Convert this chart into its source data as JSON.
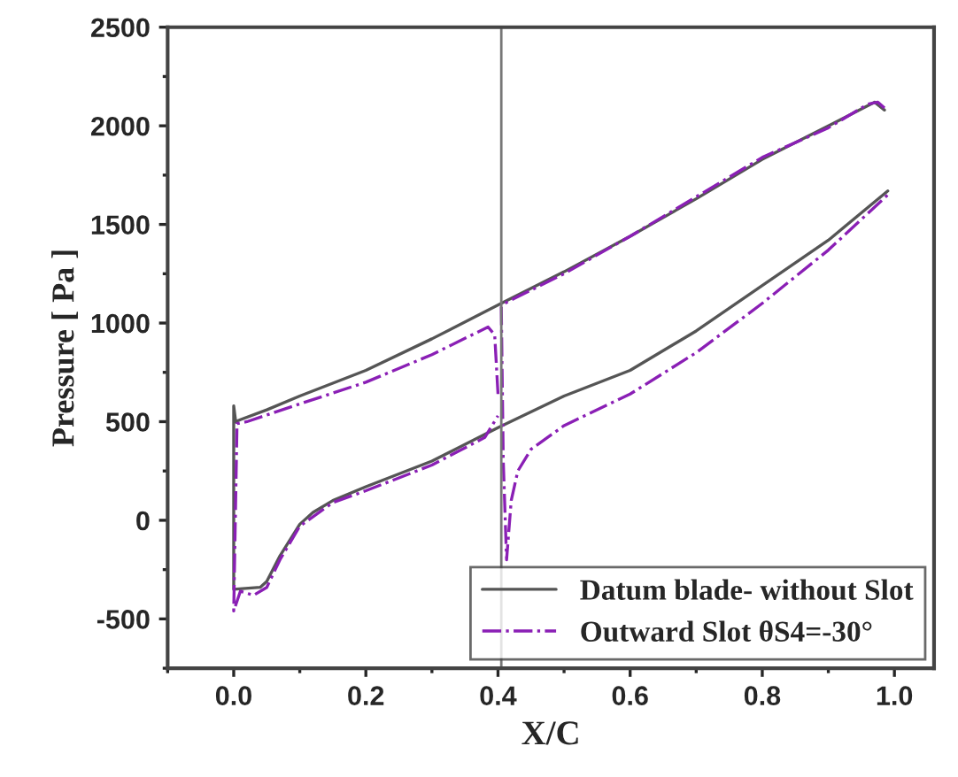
{
  "chart_data": {
    "type": "line",
    "xlabel": "X/C",
    "ylabel": "Pressure [ Pa ]",
    "xlim": [
      -0.1,
      1.06
    ],
    "ylim": [
      -750,
      2500
    ],
    "xticks": [
      {
        "value": 0,
        "label": "0.0"
      },
      {
        "value": 0.2,
        "label": "0.2"
      },
      {
        "value": 0.4,
        "label": "0.4"
      },
      {
        "value": 0.6,
        "label": "0.6"
      },
      {
        "value": 0.8,
        "label": "0.8"
      },
      {
        "value": 1,
        "label": "1.0"
      }
    ],
    "yticks": [
      -500,
      0,
      500,
      1000,
      1500,
      2000,
      2500
    ],
    "grid": false,
    "legend": "bottom right",
    "ref_lines": [
      {
        "axis": "x",
        "value": 0.405,
        "color": "#777777",
        "line_style": "solid"
      }
    ],
    "series": [
      {
        "name": "Datum blade- without Slot",
        "color": "#555555",
        "line_style": "solid",
        "x": [
          0.985,
          0.97,
          0.9,
          0.8,
          0.7,
          0.6,
          0.5,
          0.405,
          0.3,
          0.2,
          0.1,
          0.05,
          0.01,
          0.003,
          0,
          0,
          0.04,
          0.05,
          0.07,
          0.1,
          0.12,
          0.15,
          0.2,
          0.3,
          0.4,
          0.5,
          0.6,
          0.7,
          0.8,
          0.9,
          0.99
        ],
        "values": [
          2080,
          2120,
          2000,
          1830,
          1630,
          1440,
          1260,
          1100,
          920,
          760,
          630,
          560,
          510,
          500,
          580,
          -350,
          -340,
          -310,
          -180,
          -20,
          40,
          100,
          170,
          300,
          470,
          630,
          760,
          960,
          1190,
          1420,
          1670
        ]
      },
      {
        "name": "Outward Slot θS4=-30°",
        "color": "#8a1fb5",
        "line_style": "dashdot",
        "x": [
          0.985,
          0.975,
          0.96,
          0.9,
          0.8,
          0.7,
          0.6,
          0.5,
          0.41,
          0.405,
          0.408,
          0.413,
          0.42,
          0.43,
          0.45,
          0.5,
          0.6,
          0.7,
          0.8,
          0.9,
          0.99,
          null,
          0.4,
          0.395,
          0.385,
          0.3,
          0.2,
          0.1,
          0.02,
          0.005,
          0,
          0.01,
          0.03,
          0.05,
          0.07,
          0.1,
          0.15,
          0.2,
          0.3,
          0.38,
          0.4
        ],
        "values": [
          2090,
          2120,
          2110,
          1990,
          1840,
          1640,
          1440,
          1250,
          1100,
          1080,
          300,
          -200,
          100,
          250,
          360,
          480,
          640,
          850,
          1100,
          1370,
          1650,
          null,
          640,
          940,
          980,
          840,
          700,
          590,
          500,
          490,
          -460,
          -360,
          -380,
          -340,
          -200,
          -30,
          90,
          150,
          280,
          420,
          530
        ]
      }
    ]
  }
}
